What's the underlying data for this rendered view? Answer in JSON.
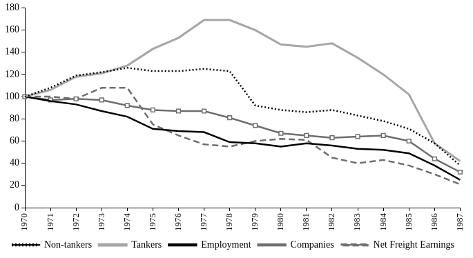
{
  "chart_data": {
    "type": "line",
    "categories": [
      "1970",
      "1971",
      "1972",
      "1973",
      "1974",
      "1975",
      "1976",
      "1977",
      "1978",
      "1979",
      "1980",
      "1981",
      "1982",
      "1983",
      "1984",
      "1985",
      "1986",
      "1987"
    ],
    "series": [
      {
        "name": "Non-tankers",
        "color": "#000000",
        "line_style": "dotted",
        "values": [
          100,
          108,
          119,
          122,
          126,
          123,
          123,
          125,
          123,
          92,
          88,
          86,
          88,
          83,
          78,
          71,
          58,
          38
        ]
      },
      {
        "name": "Tankers",
        "color": "#a6a6a6",
        "line_style": "solid",
        "values": [
          100,
          106,
          118,
          121,
          128,
          143,
          153,
          169,
          169,
          160,
          147,
          145,
          148,
          135,
          120,
          102,
          58,
          42
        ]
      },
      {
        "name": "Employment",
        "color": "#000000",
        "line_style": "solid",
        "values": [
          100,
          96,
          93,
          87,
          82,
          71,
          69,
          68,
          59,
          58,
          55,
          58,
          56,
          53,
          52,
          49,
          38,
          25
        ]
      },
      {
        "name": "Companies",
        "color": "#6e6e6e",
        "line_style": "solid",
        "marker": "square",
        "values": [
          100,
          97,
          98,
          97,
          92,
          88,
          87,
          87,
          81,
          74,
          67,
          65,
          63,
          64,
          65,
          60,
          44,
          32
        ]
      },
      {
        "name": "Net Freight Earnings",
        "color": "#6e6e6e",
        "line_style": "dashed",
        "values": [
          100,
          100,
          98,
          108,
          108,
          75,
          65,
          57,
          55,
          60,
          62,
          61,
          45,
          40,
          43,
          38,
          30,
          21
        ]
      }
    ],
    "ylim": [
      0,
      180
    ],
    "yticks": [
      0,
      20,
      40,
      60,
      80,
      100,
      120,
      140,
      160,
      180
    ],
    "grid": false,
    "legend": "bottom"
  }
}
